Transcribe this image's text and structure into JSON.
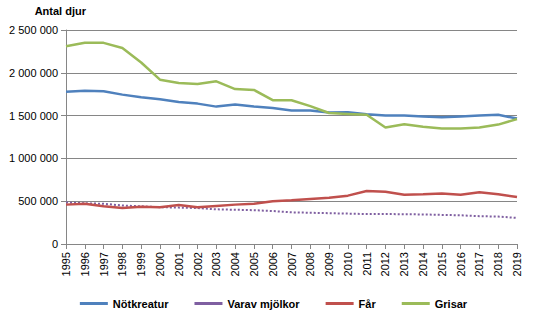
{
  "chart_data": {
    "type": "line",
    "y_label": "Antal djur",
    "categories": [
      "1995",
      "1996",
      "1997",
      "1998",
      "1999",
      "2000",
      "2001",
      "2002",
      "2003",
      "2004",
      "2005",
      "2006",
      "2007",
      "2008",
      "2009",
      "2010",
      "2011",
      "2012",
      "2013",
      "2014",
      "2015",
      "2016",
      "2017",
      "2018",
      "2019"
    ],
    "series": [
      {
        "name": "Nötkreatur",
        "color": "#4f81bd",
        "line_style": "solid",
        "values": [
          1780000,
          1790000,
          1785000,
          1745000,
          1715000,
          1690000,
          1660000,
          1640000,
          1605000,
          1630000,
          1605000,
          1590000,
          1560000,
          1560000,
          1535000,
          1540000,
          1515000,
          1500000,
          1500000,
          1490000,
          1480000,
          1490000,
          1500000,
          1510000,
          1465000
        ]
      },
      {
        "name": "Varav mjölkor",
        "color": "#7f5fa1",
        "line_style": "dotted",
        "values": [
          485000,
          475000,
          470000,
          450000,
          440000,
          430000,
          425000,
          420000,
          405000,
          400000,
          395000,
          385000,
          370000,
          365000,
          360000,
          355000,
          350000,
          350000,
          348000,
          345000,
          340000,
          335000,
          325000,
          320000,
          305000
        ]
      },
      {
        "name": "Får",
        "color": "#c0504d",
        "line_style": "solid",
        "values": [
          460000,
          470000,
          440000,
          420000,
          435000,
          430000,
          455000,
          430000,
          445000,
          460000,
          470000,
          500000,
          510000,
          525000,
          540000,
          565000,
          620000,
          610000,
          575000,
          580000,
          590000,
          575000,
          605000,
          580000,
          550000
        ]
      },
      {
        "name": "Grisar",
        "color": "#9bbb59",
        "line_style": "solid",
        "values": [
          2310000,
          2350000,
          2350000,
          2290000,
          2120000,
          1920000,
          1880000,
          1870000,
          1900000,
          1810000,
          1800000,
          1680000,
          1680000,
          1610000,
          1530000,
          1520000,
          1510000,
          1360000,
          1400000,
          1370000,
          1350000,
          1350000,
          1360000,
          1395000,
          1460000
        ]
      }
    ],
    "ylim": [
      0,
      2500000
    ],
    "yticks": [
      0,
      {
        "value": 500000,
        "label": "500 000"
      },
      {
        "value": 1000000,
        "label": "1 000 000"
      },
      {
        "value": 1500000,
        "label": "1 500 000"
      },
      {
        "value": 2000000,
        "label": "2 000 000"
      },
      {
        "value": 2500000,
        "label": "2 500 000"
      }
    ],
    "grid": true,
    "legend": "bottom",
    "marker": "none"
  }
}
